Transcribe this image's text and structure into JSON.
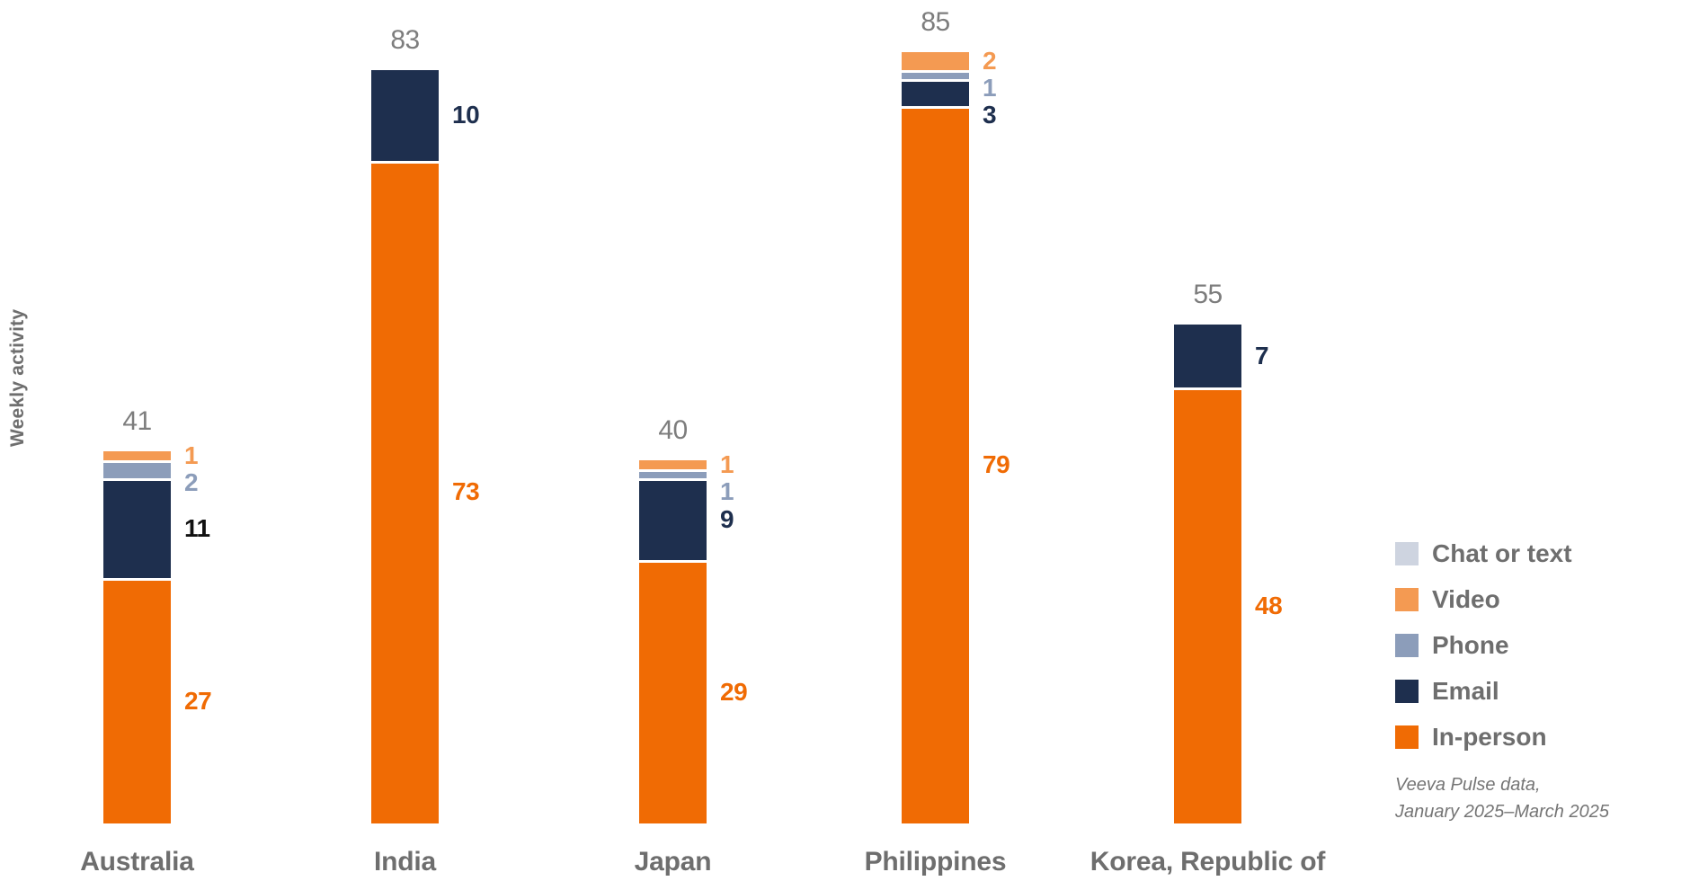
{
  "chart_data": {
    "type": "bar",
    "stacked": true,
    "orientation": "vertical",
    "title": "",
    "ylabel": "Weekly activity",
    "xlabel": "",
    "grid": false,
    "legend_position": "right",
    "categories": [
      "Australia",
      "India",
      "Japan",
      "Philippines",
      "Korea, Republic of"
    ],
    "totals": [
      41,
      83,
      40,
      85,
      55
    ],
    "series": [
      {
        "name": "Chat or text",
        "color": "#CED4E0",
        "values": [
          0,
          0,
          0,
          0,
          0
        ]
      },
      {
        "name": "Video",
        "color": "#F49A52",
        "values": [
          1,
          0,
          1,
          2,
          0
        ]
      },
      {
        "name": "Phone",
        "color": "#8C9DBA",
        "values": [
          2,
          0,
          1,
          1,
          0
        ]
      },
      {
        "name": "Email",
        "color": "#1E2F4E",
        "values": [
          11,
          10,
          9,
          3,
          7
        ],
        "label_colors": [
          "#111111",
          "#1E2F4E",
          "#1E2F4E",
          "#1E2F4E",
          "#1E2F4E"
        ]
      },
      {
        "name": "In-person",
        "color": "#F06B04",
        "values": [
          27,
          73,
          29,
          79,
          48
        ]
      }
    ],
    "source_note": [
      "Veeva Pulse data,",
      "January 2025–March 2025"
    ],
    "colors": {
      "total_label": "#7D7D7D",
      "category_label": "#6E6E6E",
      "axis_label": "#6E6E6E",
      "legend_label": "#6E6E6E",
      "source_note": "#757575",
      "background": "#FFFFFF"
    }
  }
}
